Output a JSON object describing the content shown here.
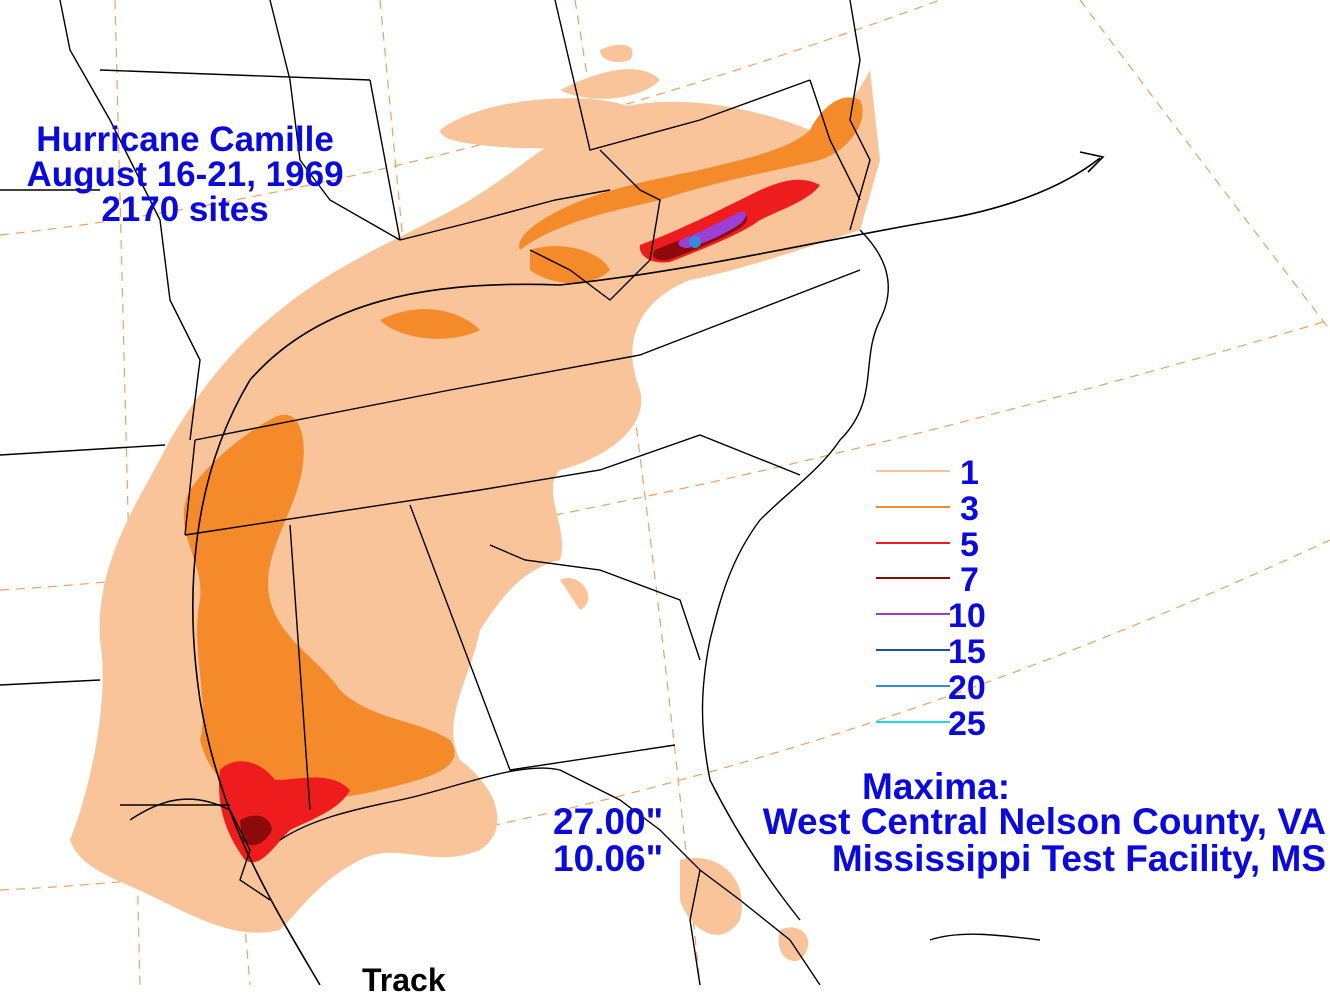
{
  "title": {
    "line1": "Hurricane Camille",
    "line2": "August 16-21, 1969",
    "line3": "2170 sites"
  },
  "legend": [
    {
      "label": "1",
      "color": "#f9c49a"
    },
    {
      "label": "3",
      "color": "#f48a2a"
    },
    {
      "label": "5",
      "color": "#ee1c1c"
    },
    {
      "label": "7",
      "color": "#8c0a0a"
    },
    {
      "label": "10",
      "color": "#9b3fd6"
    },
    {
      "label": "15",
      "color": "#1e4ea8"
    },
    {
      "label": "20",
      "color": "#3a8ad8"
    },
    {
      "label": "25",
      "color": "#22d8e8"
    }
  ],
  "maxima": {
    "heading": "Maxima:",
    "entries": [
      {
        "value": "27.00\"",
        "location": "West Central Nelson County, VA"
      },
      {
        "value": "10.06\"",
        "location": "Mississippi Test Facility, MS"
      }
    ]
  },
  "track_label": "Track",
  "colors": {
    "text": "#0a0adc",
    "light_orange": "#f9c49a",
    "orange": "#f48a2a",
    "red": "#ee1c1c",
    "dark_red": "#8c0a0a",
    "purple": "#9b3fd6",
    "blue": "#3a8ad8",
    "grid": "#f0a060",
    "boundary": "#000000"
  }
}
